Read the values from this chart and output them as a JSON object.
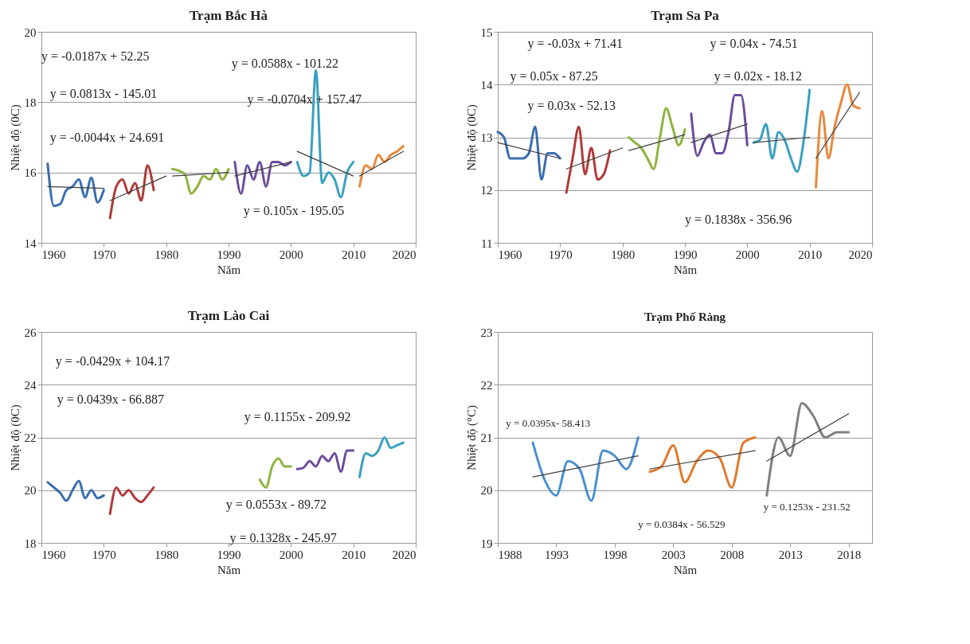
{
  "chart_data": [
    {
      "type": "line",
      "title": "Trạm Bắc Hà",
      "xlabel": "Năm",
      "ylabel": "Nhiệt độ (0C)",
      "xlim": [
        1960,
        2020
      ],
      "ylim": [
        14,
        20
      ],
      "xticks": [
        1960,
        1970,
        1980,
        1990,
        2000,
        2010,
        2020
      ],
      "yticks": [
        14,
        16,
        18,
        20
      ],
      "grid": "y",
      "series": [
        {
          "color": "#3a6db0",
          "x": [
            1961,
            1962,
            1963,
            1964,
            1965,
            1966,
            1967,
            1968,
            1969,
            1970
          ],
          "values": [
            16.25,
            15.05,
            15.1,
            15.5,
            15.6,
            15.8,
            15.3,
            15.85,
            15.15,
            15.5
          ]
        },
        {
          "color": "#b03a3a",
          "x": [
            1971,
            1972,
            1973,
            1974,
            1975,
            1976,
            1977,
            1978
          ],
          "values": [
            14.7,
            15.6,
            15.8,
            15.4,
            15.7,
            15.2,
            16.2,
            15.5
          ]
        },
        {
          "color": "#8db43c",
          "x": [
            1981,
            1982,
            1983,
            1984,
            1985,
            1986,
            1987,
            1988,
            1989,
            1990
          ],
          "values": [
            16.1,
            16.05,
            15.95,
            15.4,
            15.6,
            15.9,
            15.8,
            16.1,
            15.8,
            16.1
          ]
        },
        {
          "color": "#6a4c9c",
          "x": [
            1991,
            1992,
            1993,
            1994,
            1995,
            1996,
            1997,
            1998,
            1999,
            2000
          ],
          "values": [
            16.3,
            15.4,
            16.2,
            15.8,
            16.3,
            15.6,
            16.3,
            16.3,
            16.2,
            16.3
          ]
        },
        {
          "color": "#3aa0c0",
          "x": [
            2001,
            2002,
            2003,
            2004,
            2005,
            2006,
            2007,
            2008,
            2009,
            2010
          ],
          "values": [
            16.3,
            15.9,
            16.0,
            18.9,
            15.7,
            16.0,
            15.8,
            15.3,
            16.0,
            16.3
          ]
        },
        {
          "color": "#e8883a",
          "x": [
            2011,
            2012,
            2013,
            2014,
            2015,
            2016,
            2017,
            2018
          ],
          "values": [
            15.6,
            16.2,
            16.1,
            16.5,
            16.3,
            16.5,
            16.6,
            16.75
          ]
        },
        {
          "type": "line",
          "color": "#404040",
          "x": [
            1961,
            1970
          ],
          "values": [
            15.6,
            15.55
          ]
        },
        {
          "type": "line",
          "color": "#404040",
          "x": [
            1971,
            1980
          ],
          "values": [
            15.2,
            15.9
          ]
        },
        {
          "type": "line",
          "color": "#404040",
          "x": [
            1981,
            1990
          ],
          "values": [
            15.9,
            16.0
          ]
        },
        {
          "type": "line",
          "color": "#404040",
          "x": [
            1991,
            2000
          ],
          "values": [
            15.9,
            16.3
          ]
        },
        {
          "type": "line",
          "color": "#404040",
          "x": [
            2001,
            2010
          ],
          "values": [
            16.6,
            15.9
          ]
        },
        {
          "type": "line",
          "color": "#404040",
          "x": [
            2011,
            2018
          ],
          "values": [
            15.9,
            16.6
          ]
        }
      ],
      "annotations": [
        "y = -0.0187x + 52.25",
        "y = 0.0813x - 145.01",
        "y = -0.0044x + 24.691",
        "y = 0.0588x - 101.22",
        "y = -0.0704x + 157.47",
        "y = 0.105x - 195.05"
      ]
    },
    {
      "type": "line",
      "title": "Trạm Sa Pa",
      "xlabel": "Năm",
      "ylabel": "Nhiệt độ (0C)",
      "xlim": [
        1960,
        2020
      ],
      "ylim": [
        11,
        15
      ],
      "xticks": [
        1960,
        1970,
        1980,
        1990,
        2000,
        2010,
        2020
      ],
      "yticks": [
        11,
        12,
        13,
        14,
        15
      ],
      "grid": "y",
      "series": [
        {
          "color": "#3a6db0",
          "x": [
            1960,
            1961,
            1962,
            1963,
            1964,
            1965,
            1966,
            1967,
            1968,
            1969,
            1970
          ],
          "values": [
            13.1,
            13.0,
            12.6,
            12.6,
            12.6,
            12.7,
            13.2,
            12.2,
            12.7,
            12.7,
            12.6
          ]
        },
        {
          "color": "#b03a3a",
          "x": [
            1971,
            1972,
            1973,
            1974,
            1975,
            1976,
            1977,
            1978
          ],
          "values": [
            11.95,
            12.6,
            13.2,
            12.3,
            12.8,
            12.2,
            12.3,
            12.75
          ]
        },
        {
          "color": "#8db43c",
          "x": [
            1981,
            1982,
            1983,
            1984,
            1985,
            1986,
            1987,
            1988,
            1989,
            1990
          ],
          "values": [
            13.0,
            12.9,
            12.8,
            12.6,
            12.4,
            13.0,
            13.55,
            13.2,
            12.85,
            13.15
          ]
        },
        {
          "color": "#6a4c9c",
          "x": [
            1991,
            1992,
            1993,
            1994,
            1995,
            1996,
            1997,
            1998,
            1999,
            2000
          ],
          "values": [
            13.45,
            12.65,
            12.9,
            13.05,
            12.7,
            12.7,
            13.1,
            13.8,
            13.8,
            12.85
          ]
        },
        {
          "color": "#3aa0c0",
          "x": [
            2001,
            2002,
            2003,
            2004,
            2005,
            2006,
            2007,
            2008,
            2009,
            2010
          ],
          "values": [
            12.9,
            12.95,
            13.25,
            12.6,
            13.1,
            12.95,
            12.6,
            12.35,
            12.9,
            13.9
          ]
        },
        {
          "color": "#e8883a",
          "x": [
            2011,
            2012,
            2013,
            2014,
            2015,
            2016,
            2017,
            2018
          ],
          "values": [
            12.05,
            13.5,
            12.6,
            13.2,
            13.65,
            14.0,
            13.6,
            13.55
          ]
        },
        {
          "type": "line",
          "color": "#404040",
          "x": [
            1960,
            1970
          ],
          "values": [
            12.9,
            12.6
          ]
        },
        {
          "type": "line",
          "color": "#404040",
          "x": [
            1971,
            1980
          ],
          "values": [
            12.4,
            12.8
          ]
        },
        {
          "type": "line",
          "color": "#404040",
          "x": [
            1981,
            1990
          ],
          "values": [
            12.75,
            13.05
          ]
        },
        {
          "type": "line",
          "color": "#404040",
          "x": [
            1991,
            2000
          ],
          "values": [
            12.9,
            13.25
          ]
        },
        {
          "type": "line",
          "color": "#404040",
          "x": [
            2001,
            2010
          ],
          "values": [
            12.9,
            13.0
          ]
        },
        {
          "type": "line",
          "color": "#404040",
          "x": [
            2011,
            2018
          ],
          "values": [
            12.6,
            13.85
          ]
        }
      ],
      "annotations": [
        "y = -0.03x + 71.41",
        "y = 0.04x - 74.51",
        "y = 0.05x - 87.25",
        "y = 0.02x - 18.12",
        "y = 0.03x - 52.13",
        "y = 0.1838x - 356.96"
      ]
    },
    {
      "type": "line",
      "title": "Trạm Lào Cai",
      "xlabel": "Năm",
      "ylabel": "Nhiệt độ (0C)",
      "xlim": [
        1960,
        2020
      ],
      "ylim": [
        18,
        26
      ],
      "xticks": [
        1960,
        1970,
        1980,
        1990,
        2000,
        2010,
        2020
      ],
      "yticks": [
        18,
        20,
        22,
        24,
        26
      ],
      "grid": "y",
      "series": [
        {
          "color": "#3a6db0",
          "x": [
            1961,
            1962,
            1963,
            1964,
            1965,
            1966,
            1967,
            1968,
            1969,
            1970
          ],
          "values": [
            20.3,
            20.1,
            19.9,
            19.6,
            20.0,
            20.35,
            19.7,
            20.0,
            19.7,
            19.8
          ]
        },
        {
          "color": "#b03a3a",
          "x": [
            1971,
            1972,
            1973,
            1974,
            1975,
            1976,
            1977,
            1978
          ],
          "values": [
            19.1,
            20.1,
            19.8,
            20.0,
            19.7,
            19.55,
            19.8,
            20.1
          ]
        },
        {
          "color": "#8db43c",
          "x": [
            1995,
            1996,
            1997,
            1998,
            1999,
            2000
          ],
          "values": [
            20.4,
            20.1,
            20.9,
            21.2,
            20.9,
            20.9
          ]
        },
        {
          "color": "#6a4c9c",
          "x": [
            2001,
            2002,
            2003,
            2004,
            2005,
            2006,
            2007,
            2008,
            2009,
            2010
          ],
          "values": [
            20.8,
            20.85,
            21.1,
            20.9,
            21.3,
            21.1,
            21.4,
            20.7,
            21.5,
            21.5
          ]
        },
        {
          "color": "#3aa0c0",
          "x": [
            2011,
            2012,
            2013,
            2014,
            2015,
            2016,
            2017,
            2018
          ],
          "values": [
            20.5,
            21.4,
            21.3,
            21.5,
            22.0,
            21.6,
            21.7,
            21.8
          ]
        }
      ],
      "annotations": [
        "y = -0.0429x + 104.17",
        "y = 0.0439x - 66.887",
        "y = 0.1155x - 209.92",
        "y = 0.0553x - 89.72",
        "y = 0.1328x - 245.97"
      ]
    },
    {
      "type": "line",
      "title": "Trạm Phố Ràng",
      "xlabel": "Năm",
      "ylabel": "Nhiệt độ (°C)",
      "xlim": [
        1988,
        2020
      ],
      "ylim": [
        19,
        23
      ],
      "xticks": [
        1988,
        1993,
        1998,
        2003,
        2008,
        2013,
        2018
      ],
      "yticks": [
        19,
        20,
        21,
        22,
        23
      ],
      "grid": "y",
      "series": [
        {
          "color": "#4a8fd0",
          "x": [
            1991,
            1992,
            1993,
            1994,
            1995,
            1996,
            1997,
            1998,
            1999,
            2000
          ],
          "values": [
            20.9,
            20.2,
            19.9,
            20.55,
            20.4,
            19.8,
            20.75,
            20.65,
            20.4,
            21.0
          ]
        },
        {
          "color": "#e07a2e",
          "x": [
            2001,
            2002,
            2003,
            2004,
            2005,
            2006,
            2007,
            2008,
            2009,
            2010
          ],
          "values": [
            20.35,
            20.45,
            20.85,
            20.15,
            20.55,
            20.75,
            20.6,
            20.05,
            20.9,
            21.0
          ]
        },
        {
          "color": "#808080",
          "x": [
            2011,
            2012,
            2013,
            2014,
            2015,
            2016,
            2017,
            2018
          ],
          "values": [
            19.9,
            21.0,
            20.65,
            21.65,
            21.4,
            21.0,
            21.1,
            21.1
          ]
        },
        {
          "type": "line",
          "color": "#404040",
          "x": [
            1991,
            2000
          ],
          "values": [
            20.25,
            20.65
          ]
        },
        {
          "type": "line",
          "color": "#404040",
          "x": [
            2001,
            2010
          ],
          "values": [
            20.4,
            20.75
          ]
        },
        {
          "type": "line",
          "color": "#404040",
          "x": [
            2011,
            2018
          ],
          "values": [
            20.55,
            21.45
          ]
        }
      ],
      "annotations": [
        "y = 0.0395x- 58.413",
        "y = 0.0384x - 56.529",
        "y = 0.1253x - 231.52"
      ]
    }
  ]
}
